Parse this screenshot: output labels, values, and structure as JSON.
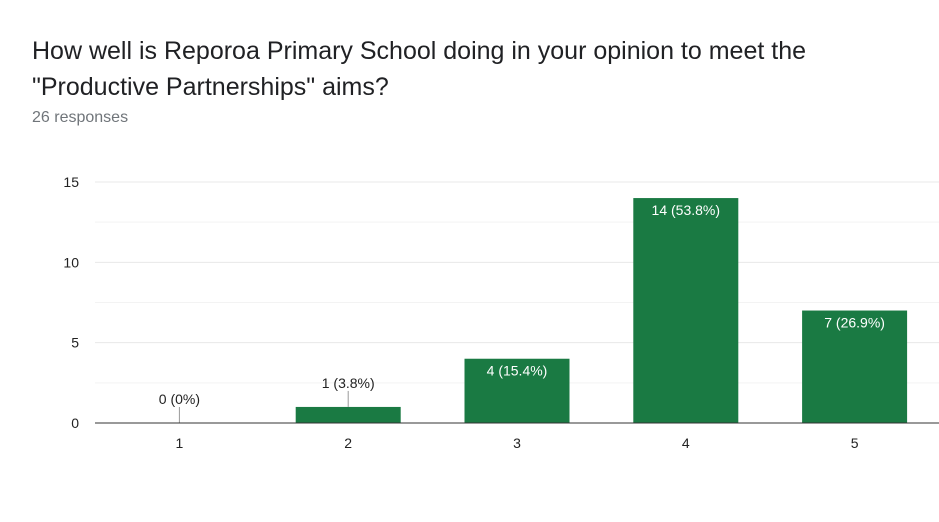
{
  "header": {
    "title": "How well is Reporoa Primary School doing in your opinion to meet the \"Productive Partnerships\" aims?",
    "responses": "26 responses"
  },
  "colors": {
    "bar": "#1a7a43",
    "grid": "#e8e8e8",
    "axis": "#333333"
  },
  "chart_data": {
    "type": "bar",
    "categories": [
      "1",
      "2",
      "3",
      "4",
      "5"
    ],
    "values": [
      0,
      1,
      4,
      14,
      7
    ],
    "labels": [
      "0 (0%)",
      "1 (3.8%)",
      "4 (15.4%)",
      "14 (53.8%)",
      "7 (26.9%)"
    ],
    "ylim": [
      0,
      15
    ],
    "yticks": [
      0,
      5,
      10,
      15
    ],
    "grid": true,
    "legend": "none"
  }
}
